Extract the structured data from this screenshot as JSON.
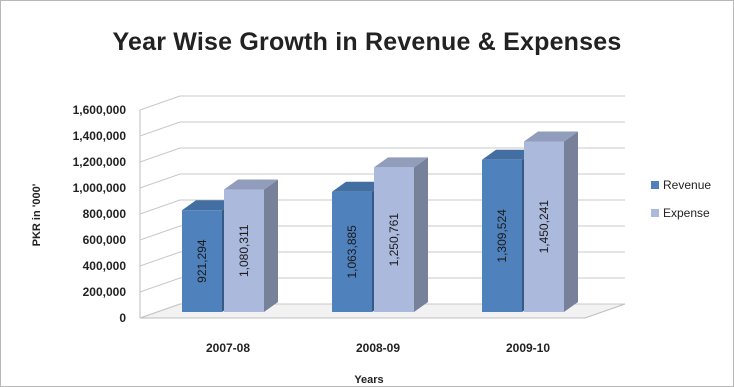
{
  "chart_data": {
    "type": "bar",
    "title": "Year Wise Growth in Revenue & Expenses",
    "xlabel": "Years",
    "ylabel": "PKR in '000'",
    "categories": [
      "2007-08",
      "2008-09",
      "2009-10"
    ],
    "series": [
      {
        "name": "Revenue",
        "values": [
          921294,
          1063885,
          1309524
        ],
        "labels": [
          "921,294",
          "1,063,885",
          "1,309,524"
        ],
        "color": "#4f81bd"
      },
      {
        "name": "Expense",
        "values": [
          1080311,
          1250761,
          1450241
        ],
        "labels": [
          "1,080,311",
          "1,250,761",
          "1,450,241"
        ],
        "color": "#aab9dc"
      }
    ],
    "ylim": [
      0,
      1600000
    ],
    "yticks": [
      0,
      200000,
      400000,
      600000,
      800000,
      1000000,
      1200000,
      1400000,
      1600000
    ],
    "ytick_labels": [
      "0",
      "200,000",
      "400,000",
      "600,000",
      "800,000",
      "1,000,000",
      "1,200,000",
      "1,400,000",
      "1,600,000"
    ],
    "grid": true,
    "legend_position": "right",
    "style": "3d-column"
  }
}
